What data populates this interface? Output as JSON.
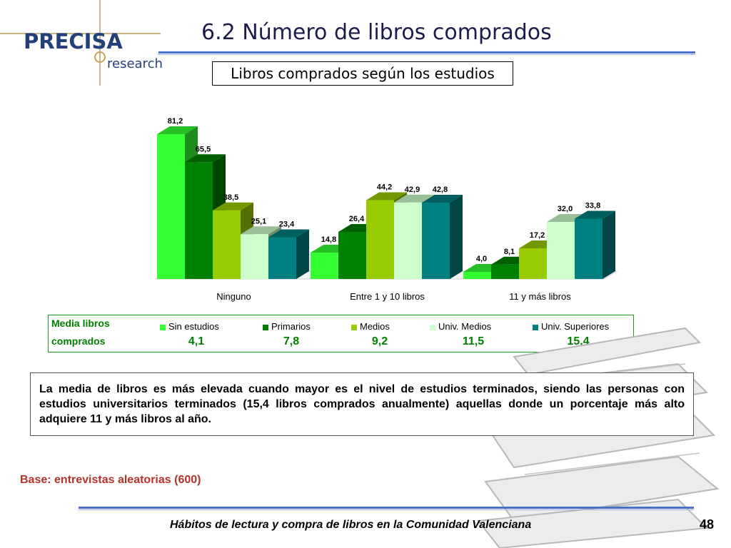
{
  "logo": {
    "brand": "PRECISA",
    "sub": "research"
  },
  "title": "6.2 Número de libros comprados",
  "subtitle": "Libros comprados según los estudios",
  "chart_data": {
    "type": "bar",
    "categories": [
      "Ninguno",
      "Entre 1 y 10 libros",
      "11 y más libros"
    ],
    "series": [
      {
        "name": "Sin estudios",
        "values": [
          81.2,
          14.8,
          4.0
        ],
        "labels": [
          "81,2",
          "14,8",
          "4,0"
        ],
        "color": "#33ff33"
      },
      {
        "name": "Primarios",
        "values": [
          65.5,
          26.4,
          8.1
        ],
        "labels": [
          "65,5",
          "26,4",
          "8,1"
        ],
        "color": "#008000"
      },
      {
        "name": "Medios",
        "values": [
          38.5,
          44.2,
          17.2
        ],
        "labels": [
          "38,5",
          "44,2",
          "17,2"
        ],
        "color": "#99cc00"
      },
      {
        "name": "Univ. Medios",
        "values": [
          25.1,
          42.9,
          32.0
        ],
        "labels": [
          "25,1",
          "42,9",
          "32,0"
        ],
        "color": "#ccffcc"
      },
      {
        "name": "Univ. Superiores",
        "values": [
          23.4,
          42.8,
          33.8
        ],
        "labels": [
          "23,4",
          "42,8",
          "33,8"
        ],
        "color": "#008080"
      }
    ],
    "ylim": [
      0,
      90
    ],
    "grid": false,
    "legend": "bottom"
  },
  "media": {
    "label_line1": "Media libros",
    "label_line2": "comprados",
    "values": [
      "4,1",
      "7,8",
      "9,2",
      "11,5",
      "15,4"
    ]
  },
  "note": "La media de libros es más elevada cuando mayor es el nivel de estudios terminados, siendo las personas con estudios universitarios terminados (15,4 libros comprados anualmente) aquellas donde un porcentaje más alto adquiere 11 y más libros al año.",
  "base": "Base: entrevistas aleatorias (600)",
  "footer": "Hábitos de lectura y compra de libros en la Comunidad Valenciana",
  "page_number": "48",
  "colors": {
    "title_rule": "#4a6fc6",
    "base_text": "#b5322a",
    "media_text": "#008000"
  }
}
